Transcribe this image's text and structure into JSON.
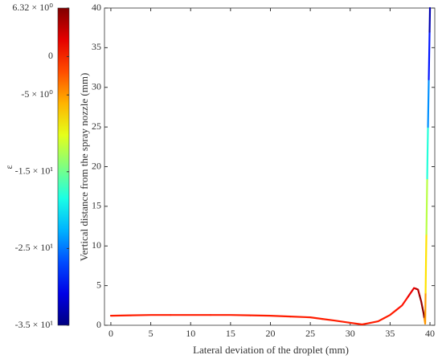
{
  "chart_data": {
    "type": "colored_line",
    "x_label": "Lateral deviation of the droplet (mm)",
    "y_label": "Vertical distance from the spray nozzle (mm)",
    "colorbar_label": "ε",
    "xlim": [
      -0.8,
      40.6
    ],
    "ylim": [
      0,
      40
    ],
    "xticks": [
      0,
      5,
      10,
      15,
      20,
      25,
      30,
      35,
      40
    ],
    "yticks": [
      0,
      5,
      10,
      15,
      20,
      25,
      30,
      35,
      40
    ],
    "clim": [
      -35,
      6.32
    ],
    "colormap": "jet",
    "cticks": [
      {
        "value": 6.32,
        "label": "6.32 × 10⁰"
      },
      {
        "value": 0,
        "label": "0"
      },
      {
        "value": -5,
        "label": "-5 × 10⁰"
      },
      {
        "value": -15,
        "label": "-1.5 × 10¹"
      },
      {
        "value": -25,
        "label": "-2.5 × 10¹"
      },
      {
        "value": -35,
        "label": "-3.5 × 10¹"
      }
    ],
    "x": [
      0,
      5,
      10,
      15,
      20,
      25,
      28,
      31.5,
      33.5,
      35,
      36.5,
      38,
      38.5,
      38.9,
      39.2,
      39.4,
      39.5,
      39.6,
      39.7,
      39.8,
      39.9,
      40
    ],
    "y": [
      1.2,
      1.3,
      1.3,
      1.3,
      1.2,
      1.0,
      0.6,
      0.1,
      0.5,
      1.3,
      2.5,
      4.7,
      4.5,
      3.0,
      1.5,
      0.2,
      8,
      15,
      22,
      28,
      34,
      40
    ],
    "color_values": [
      0,
      0,
      0,
      0,
      0,
      0,
      0,
      0,
      0,
      0,
      0.5,
      2,
      4,
      5.5,
      6,
      -5,
      -8,
      -12,
      -18,
      -24,
      -29,
      -33
    ]
  }
}
